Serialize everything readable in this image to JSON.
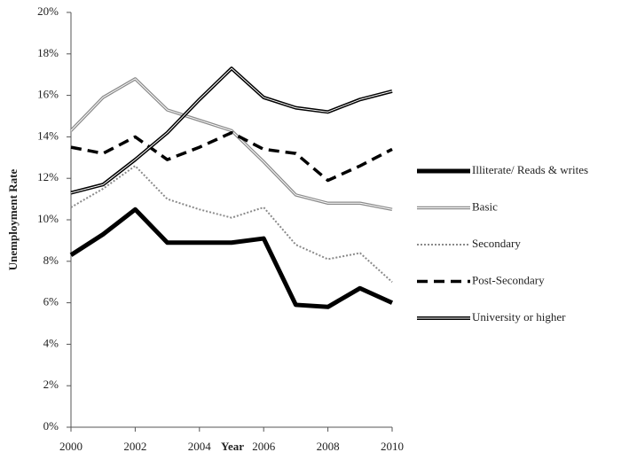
{
  "chart_data": {
    "type": "line",
    "x_label": "Year",
    "y_label": "Unemployment Rate",
    "x": [
      2000,
      2001,
      2002,
      2003,
      2004,
      2005,
      2006,
      2007,
      2008,
      2009,
      2010
    ],
    "xlim": [
      2000,
      2010
    ],
    "xticks": [
      2000,
      2002,
      2004,
      2006,
      2008,
      2010
    ],
    "ylim": [
      0,
      20
    ],
    "yticks": [
      {
        "value": 0,
        "label": "0%"
      },
      {
        "value": 2,
        "label": "2%"
      },
      {
        "value": 4,
        "label": "4%"
      },
      {
        "value": 6,
        "label": "6%"
      },
      {
        "value": 8,
        "label": "8%"
      },
      {
        "value": 10,
        "label": "10%"
      },
      {
        "value": 12,
        "label": "12%"
      },
      {
        "value": 14,
        "label": "14%"
      },
      {
        "value": 16,
        "label": "16%"
      },
      {
        "value": 18,
        "label": "18%"
      },
      {
        "value": 20,
        "label": "20%"
      }
    ],
    "grid": false,
    "legend": "right",
    "series": [
      {
        "name": "Illiterate/ Reads & writes",
        "color": "#000000",
        "width": 5,
        "dash": "none",
        "double": false,
        "values": [
          8.3,
          9.3,
          10.5,
          8.9,
          8.9,
          8.9,
          9.1,
          5.9,
          5.8,
          6.7,
          6.0
        ]
      },
      {
        "name": "Basic",
        "color": "#8a8a8a",
        "width": 3.5,
        "dash": "none",
        "double": true,
        "values": [
          14.3,
          15.9,
          16.8,
          15.3,
          14.8,
          14.3,
          12.8,
          11.2,
          10.8,
          10.8,
          10.5
        ]
      },
      {
        "name": "Secondary",
        "color": "#8a8a8a",
        "width": 2,
        "dash": "2 2",
        "double": false,
        "values": [
          10.6,
          11.5,
          12.6,
          11.0,
          10.5,
          10.1,
          10.6,
          8.8,
          8.1,
          8.4,
          7.0
        ]
      },
      {
        "name": "Post-Secondary",
        "color": "#000000",
        "width": 3.5,
        "dash": "12 7",
        "double": false,
        "values": [
          13.5,
          13.2,
          14.0,
          12.9,
          13.5,
          14.2,
          13.4,
          13.2,
          11.9,
          12.6,
          13.4
        ]
      },
      {
        "name": "University or higher",
        "color": "#000000",
        "width": 4,
        "dash": "none",
        "double": true,
        "values": [
          11.3,
          11.7,
          12.9,
          14.2,
          15.8,
          17.3,
          15.9,
          15.4,
          15.2,
          15.8,
          16.2
        ]
      }
    ]
  }
}
